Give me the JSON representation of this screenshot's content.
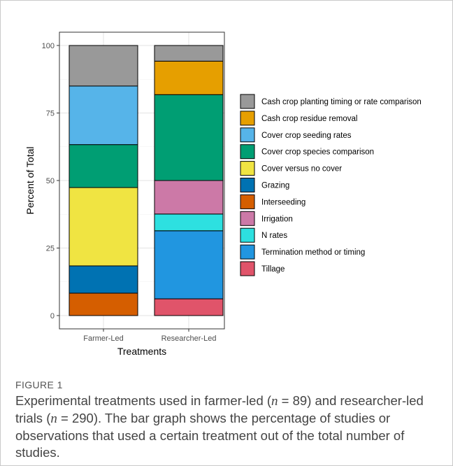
{
  "chart_data": {
    "type": "bar",
    "stacked": true,
    "xlabel": "Treatments",
    "ylabel": "Percent of Total",
    "ylim": [
      0,
      100
    ],
    "yticks": [
      0,
      25,
      50,
      75,
      100
    ],
    "categories": [
      "Farmer-Led",
      "Researcher-Led"
    ],
    "grid": true,
    "legend_position": "right",
    "series": [
      {
        "name": "Tillage",
        "color": "#e0546a",
        "values": [
          0,
          6.2
        ]
      },
      {
        "name": "Termination method or timing",
        "color": "#2196e0",
        "values": [
          0,
          25.2
        ]
      },
      {
        "name": "N rates",
        "color": "#2de0e0",
        "values": [
          0,
          6.2
        ]
      },
      {
        "name": "Irrigation",
        "color": "#cc79a7",
        "values": [
          0,
          12.4
        ]
      },
      {
        "name": "Interseeding",
        "color": "#d55e00",
        "values": [
          8.3,
          0
        ]
      },
      {
        "name": "Grazing",
        "color": "#0072b2",
        "values": [
          10.1,
          0
        ]
      },
      {
        "name": "Cover versus no cover",
        "color": "#f0e442",
        "values": [
          29.0,
          0
        ]
      },
      {
        "name": "Cover crop species comparison",
        "color": "#009e73",
        "values": [
          15.9,
          31.8
        ]
      },
      {
        "name": "Cover crop seeding rates",
        "color": "#56b4e9",
        "values": [
          21.7,
          0
        ]
      },
      {
        "name": "Cash crop residue removal",
        "color": "#e69f00",
        "values": [
          0,
          12.4
        ]
      },
      {
        "name": "Cash crop planting timing or rate comparison",
        "color": "#999999",
        "values": [
          15.0,
          5.8
        ]
      }
    ],
    "legend_order": [
      "Cash crop planting timing or rate comparison",
      "Cash crop residue removal",
      "Cover crop seeding rates",
      "Cover crop species comparison",
      "Cover versus no cover",
      "Grazing",
      "Interseeding",
      "Irrigation",
      "N rates",
      "Termination method or timing",
      "Tillage"
    ]
  },
  "figure": {
    "label": "FIGURE 1",
    "caption_parts": [
      "Experimental treatments used in farmer-led (",
      "n",
      " = 89) and researcher-led trials (",
      "n",
      " = 290). The bar graph shows the percentage of studies or observations that used a certain treatment out of the total number of studies."
    ]
  }
}
